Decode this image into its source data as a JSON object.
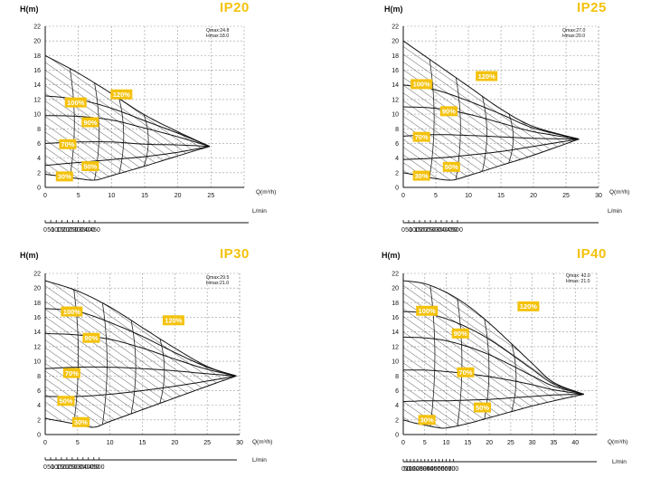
{
  "chart_data": [
    {
      "type": "line",
      "title": "IP20",
      "ylabel": "H(m)",
      "xlabel": "Q(m³/h)",
      "x2label": "L/min",
      "info": [
        "Qmax:24.8",
        "Hmax:18.0"
      ],
      "xlim": [
        0,
        30
      ],
      "ylim": [
        0,
        22
      ],
      "xticks": [
        0,
        5,
        10,
        15,
        20,
        25
      ],
      "yticks": [
        0,
        2,
        4,
        6,
        8,
        10,
        12,
        14,
        16,
        18,
        20,
        22
      ],
      "x2ticks": [
        "0",
        "50",
        "100",
        "150",
        "200",
        "250",
        "300",
        "350",
        "400",
        "450"
      ],
      "x2max": 500,
      "qmax": 24.8,
      "hmax": 18.0,
      "series": [
        {
          "name": "120%",
          "x": [
            0,
            5,
            10,
            15,
            20,
            24.8
          ],
          "y": [
            18,
            15.6,
            12.8,
            9.9,
            7.6,
            5.6
          ]
        },
        {
          "name": "100%",
          "x": [
            0,
            5,
            10,
            15,
            20,
            24.8
          ],
          "y": [
            12.5,
            12.0,
            10.8,
            9.1,
            7.4,
            5.6
          ]
        },
        {
          "name": "90%",
          "x": [
            0,
            5,
            10,
            15,
            20,
            24.8
          ],
          "y": [
            9.8,
            9.7,
            9.2,
            8.1,
            6.9,
            5.6
          ]
        },
        {
          "name": "70%",
          "x": [
            0,
            5,
            10,
            15,
            20,
            24.8
          ],
          "y": [
            6.0,
            6.2,
            6.2,
            5.9,
            5.8,
            5.6
          ]
        },
        {
          "name": "50%",
          "x": [
            0,
            5,
            10,
            15,
            20,
            24.8
          ],
          "y": [
            3.0,
            3.4,
            3.8,
            4.2,
            4.8,
            5.6
          ]
        },
        {
          "name": "30%",
          "x": [
            0,
            2.5,
            5,
            7.5,
            10,
            15,
            20,
            24.8
          ],
          "y": [
            1.8,
            1.5,
            1.2,
            1.0,
            1.6,
            2.9,
            4.3,
            5.6
          ]
        }
      ],
      "labels": [
        {
          "text": "120%",
          "x": 11.5,
          "y": 12.7
        },
        {
          "text": "100%",
          "x": 4.6,
          "y": 11.6
        },
        {
          "text": "90%",
          "x": 6.8,
          "y": 8.9
        },
        {
          "text": "70%",
          "x": 3.4,
          "y": 5.9
        },
        {
          "text": "50%",
          "x": 6.8,
          "y": 2.9
        },
        {
          "text": "30%",
          "x": 2.9,
          "y": 1.5
        }
      ]
    },
    {
      "type": "line",
      "title": "IP25",
      "ylabel": "H(m)",
      "xlabel": "Q(m³/h)",
      "x2label": "L/min",
      "info": [
        "Qmax:27.0",
        "Hmax:20.0"
      ],
      "xlim": [
        0,
        30
      ],
      "ylim": [
        0,
        22
      ],
      "xticks": [
        0,
        5,
        10,
        15,
        20,
        25,
        30
      ],
      "yticks": [
        0,
        2,
        4,
        6,
        8,
        10,
        12,
        14,
        16,
        18,
        20,
        22
      ],
      "x2ticks": [
        "0",
        "50",
        "100",
        "150",
        "200",
        "250",
        "300",
        "350",
        "400",
        "450",
        "500"
      ],
      "x2max": 500,
      "qmax": 27.0,
      "hmax": 20.0,
      "series": [
        {
          "name": "120%",
          "x": [
            0,
            5,
            10,
            15,
            20,
            27
          ],
          "y": [
            20,
            16.9,
            13.8,
            10.7,
            8.3,
            6.6
          ]
        },
        {
          "name": "100%",
          "x": [
            0,
            5,
            10,
            15,
            20,
            27
          ],
          "y": [
            14.0,
            13.3,
            11.8,
            10.0,
            8.1,
            6.6
          ]
        },
        {
          "name": "90%",
          "x": [
            0,
            5,
            10,
            15,
            20,
            27
          ],
          "y": [
            11.0,
            10.8,
            10.0,
            8.8,
            7.6,
            6.6
          ]
        },
        {
          "name": "70%",
          "x": [
            0,
            5,
            10,
            15,
            20,
            27
          ],
          "y": [
            7.0,
            7.2,
            7.1,
            6.9,
            6.7,
            6.6
          ]
        },
        {
          "name": "50%",
          "x": [
            0,
            5,
            10,
            15,
            20,
            27
          ],
          "y": [
            3.8,
            4.0,
            4.4,
            4.9,
            5.6,
            6.6
          ]
        },
        {
          "name": "30%",
          "x": [
            0,
            2.5,
            5,
            7.5,
            10,
            15,
            20,
            27
          ],
          "y": [
            2.0,
            1.6,
            1.2,
            1.0,
            1.6,
            3.0,
            4.4,
            6.6
          ]
        }
      ],
      "labels": [
        {
          "text": "120%",
          "x": 12.8,
          "y": 15.2
        },
        {
          "text": "100%",
          "x": 2.8,
          "y": 14.1
        },
        {
          "text": "90%",
          "x": 7.0,
          "y": 10.4
        },
        {
          "text": "70%",
          "x": 2.8,
          "y": 6.9
        },
        {
          "text": "50%",
          "x": 7.4,
          "y": 2.8
        },
        {
          "text": "30%",
          "x": 2.8,
          "y": 1.6
        }
      ]
    },
    {
      "type": "line",
      "title": "IP30",
      "ylabel": "H(m)",
      "xlabel": "Q(m³/h)",
      "x2label": "L/min",
      "info": [
        "Qmax:29.5",
        "Hmax:21.0"
      ],
      "xlim": [
        0,
        30
      ],
      "ylim": [
        0,
        22
      ],
      "xticks": [
        0,
        5,
        10,
        15,
        20,
        25,
        30
      ],
      "yticks": [
        0,
        2,
        4,
        6,
        8,
        10,
        12,
        14,
        16,
        18,
        20,
        22
      ],
      "x2ticks": [
        "0",
        "50",
        "100",
        "150",
        "200",
        "250",
        "300",
        "350",
        "400",
        "450",
        "500"
      ],
      "x2max": 500,
      "qmax": 29.5,
      "hmax": 21.0,
      "series": [
        {
          "name": "120%",
          "x": [
            0,
            5,
            10,
            15,
            20,
            25,
            29.5
          ],
          "y": [
            21,
            19.6,
            17.4,
            14.6,
            11.8,
            9.3,
            8.0
          ]
        },
        {
          "name": "100%",
          "x": [
            0,
            5,
            10,
            15,
            20,
            25,
            29.5
          ],
          "y": [
            17.2,
            16.8,
            15.3,
            13.4,
            11.2,
            9.2,
            8.0
          ]
        },
        {
          "name": "90%",
          "x": [
            0,
            5,
            10,
            15,
            20,
            25,
            29.5
          ],
          "y": [
            13.8,
            13.6,
            13.0,
            11.8,
            10.3,
            8.9,
            8.0
          ]
        },
        {
          "name": "70%",
          "x": [
            0,
            5,
            10,
            15,
            20,
            25,
            29.5
          ],
          "y": [
            9.0,
            9.2,
            9.2,
            9.0,
            8.7,
            8.3,
            8.0
          ]
        },
        {
          "name": "50%",
          "x": [
            0,
            5,
            10,
            15,
            20,
            25,
            29.5
          ],
          "y": [
            5.2,
            5.2,
            5.5,
            6.0,
            6.6,
            7.3,
            8.0
          ]
        },
        {
          "name": "30%",
          "x": [
            0,
            2.5,
            5,
            7.5,
            10,
            15,
            20,
            25,
            29.5
          ],
          "y": [
            2.2,
            1.8,
            1.4,
            1.0,
            1.8,
            3.4,
            5.0,
            6.6,
            8.0
          ]
        }
      ],
      "labels": [
        {
          "text": "120%",
          "x": 19.8,
          "y": 15.6
        },
        {
          "text": "100%",
          "x": 4.1,
          "y": 16.8
        },
        {
          "text": "90%",
          "x": 7.1,
          "y": 13.2
        },
        {
          "text": "70%",
          "x": 4.1,
          "y": 8.4
        },
        {
          "text": "50%",
          "x": 3.2,
          "y": 4.6
        },
        {
          "text": "30%",
          "x": 5.5,
          "y": 1.7
        }
      ]
    },
    {
      "type": "line",
      "title": "IP40",
      "ylabel": "H(m)",
      "xlabel": "Q(m³/h)",
      "x2label": "L/min",
      "info": [
        "Qmax: 42.0",
        "Hmax: 21.0"
      ],
      "xlim": [
        0,
        45
      ],
      "ylim": [
        0,
        22
      ],
      "xticks": [
        0,
        5,
        10,
        15,
        20,
        25,
        30,
        35,
        40
      ],
      "yticks": [
        0,
        2,
        4,
        6,
        8,
        10,
        12,
        14,
        16,
        18,
        20,
        22
      ],
      "x2ticks": [
        "0",
        "50",
        "100",
        "150",
        "200",
        "250",
        "300",
        "350",
        "400",
        "450",
        "500",
        "550",
        "600",
        "650",
        "700"
      ],
      "x2max": 750,
      "qmax": 42.0,
      "hmax": 21.0,
      "series": [
        {
          "name": "120%",
          "x": [
            0,
            5,
            10,
            15,
            20,
            25,
            30,
            35,
            42
          ],
          "y": [
            21,
            20.6,
            19.4,
            17.6,
            15.2,
            12.5,
            9.7,
            7.1,
            5.5
          ]
        },
        {
          "name": "100%",
          "x": [
            0,
            5,
            10,
            15,
            20,
            25,
            30,
            35,
            42
          ],
          "y": [
            16.8,
            16.6,
            15.8,
            14.6,
            13.0,
            11.0,
            8.9,
            6.9,
            5.5
          ]
        },
        {
          "name": "90%",
          "x": [
            0,
            5,
            10,
            15,
            20,
            25,
            30,
            35,
            42
          ],
          "y": [
            13.3,
            13.2,
            12.8,
            12.0,
            10.9,
            9.5,
            8.0,
            6.6,
            5.5
          ]
        },
        {
          "name": "70%",
          "x": [
            0,
            5,
            10,
            15,
            20,
            25,
            30,
            35,
            42
          ],
          "y": [
            8.8,
            8.8,
            8.6,
            8.3,
            7.9,
            7.4,
            6.8,
            6.1,
            5.5
          ]
        },
        {
          "name": "50%",
          "x": [
            0,
            5,
            10,
            15,
            20,
            25,
            30,
            35,
            42
          ],
          "y": [
            4.5,
            4.6,
            4.6,
            4.7,
            4.8,
            5.0,
            5.2,
            5.4,
            5.5
          ]
        },
        {
          "name": "30%",
          "x": [
            0,
            2.5,
            5,
            7.5,
            10,
            15,
            20,
            25,
            30,
            35,
            42
          ],
          "y": [
            2.0,
            1.6,
            1.3,
            1.0,
            0.9,
            1.5,
            2.3,
            3.1,
            3.9,
            4.6,
            5.5
          ]
        }
      ],
      "labels": [
        {
          "text": "120%",
          "x": 29.1,
          "y": 17.5
        },
        {
          "text": "100%",
          "x": 5.5,
          "y": 16.9
        },
        {
          "text": "90%",
          "x": 13.3,
          "y": 13.8
        },
        {
          "text": "70%",
          "x": 14.5,
          "y": 8.5
        },
        {
          "text": "50%",
          "x": 18.4,
          "y": 3.7
        },
        {
          "text": "30%",
          "x": 5.5,
          "y": 2.0
        }
      ]
    }
  ]
}
